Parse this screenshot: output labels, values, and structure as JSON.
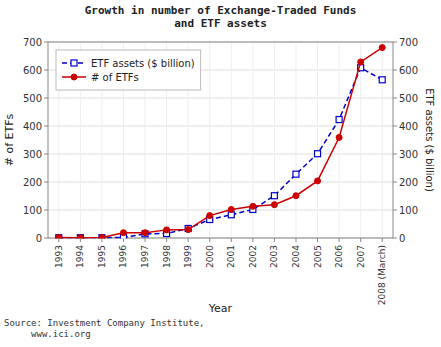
{
  "chart_data": {
    "type": "line",
    "title": "Growth in number of Exchange-Traded Funds\nand ETF assets",
    "xlabel": "Year",
    "ylabel": "# of ETFs",
    "y2label": "ETF assets ($ billion)",
    "annotations": [
      "Source: Investment Company Institute,\n     www.ici.org"
    ],
    "categories": [
      "1993",
      "1994",
      "1995",
      "1996",
      "1997",
      "1998",
      "1999",
      "2000",
      "2001",
      "2002",
      "2003",
      "2004",
      "2005",
      "2006",
      "2007",
      "2008 (March)"
    ],
    "series": [
      {
        "name": "ETF assets ($ billion)",
        "color": "#0000cc",
        "line_style": "dashed",
        "marker": "square",
        "values": [
          1,
          1,
          1,
          2,
          15,
          16,
          34,
          66,
          83,
          102,
          151,
          228,
          301,
          423,
          608,
          565
        ]
      },
      {
        "name": "# of ETFs",
        "color": "#cc0000",
        "line_style": "solid",
        "marker": "circle",
        "axis": "y2",
        "values": [
          2,
          1,
          2,
          19,
          19,
          29,
          30,
          80,
          102,
          113,
          119,
          151,
          204,
          359,
          629,
          680
        ]
      }
    ],
    "ylim": [
      0,
      700
    ],
    "yticks": [
      0,
      100,
      200,
      300,
      400,
      500,
      600,
      700
    ],
    "y2lim": [
      0,
      700
    ],
    "y2ticks": [
      0,
      100,
      200,
      300,
      400,
      500,
      600,
      700
    ],
    "grid": true,
    "legend": "upper left"
  }
}
